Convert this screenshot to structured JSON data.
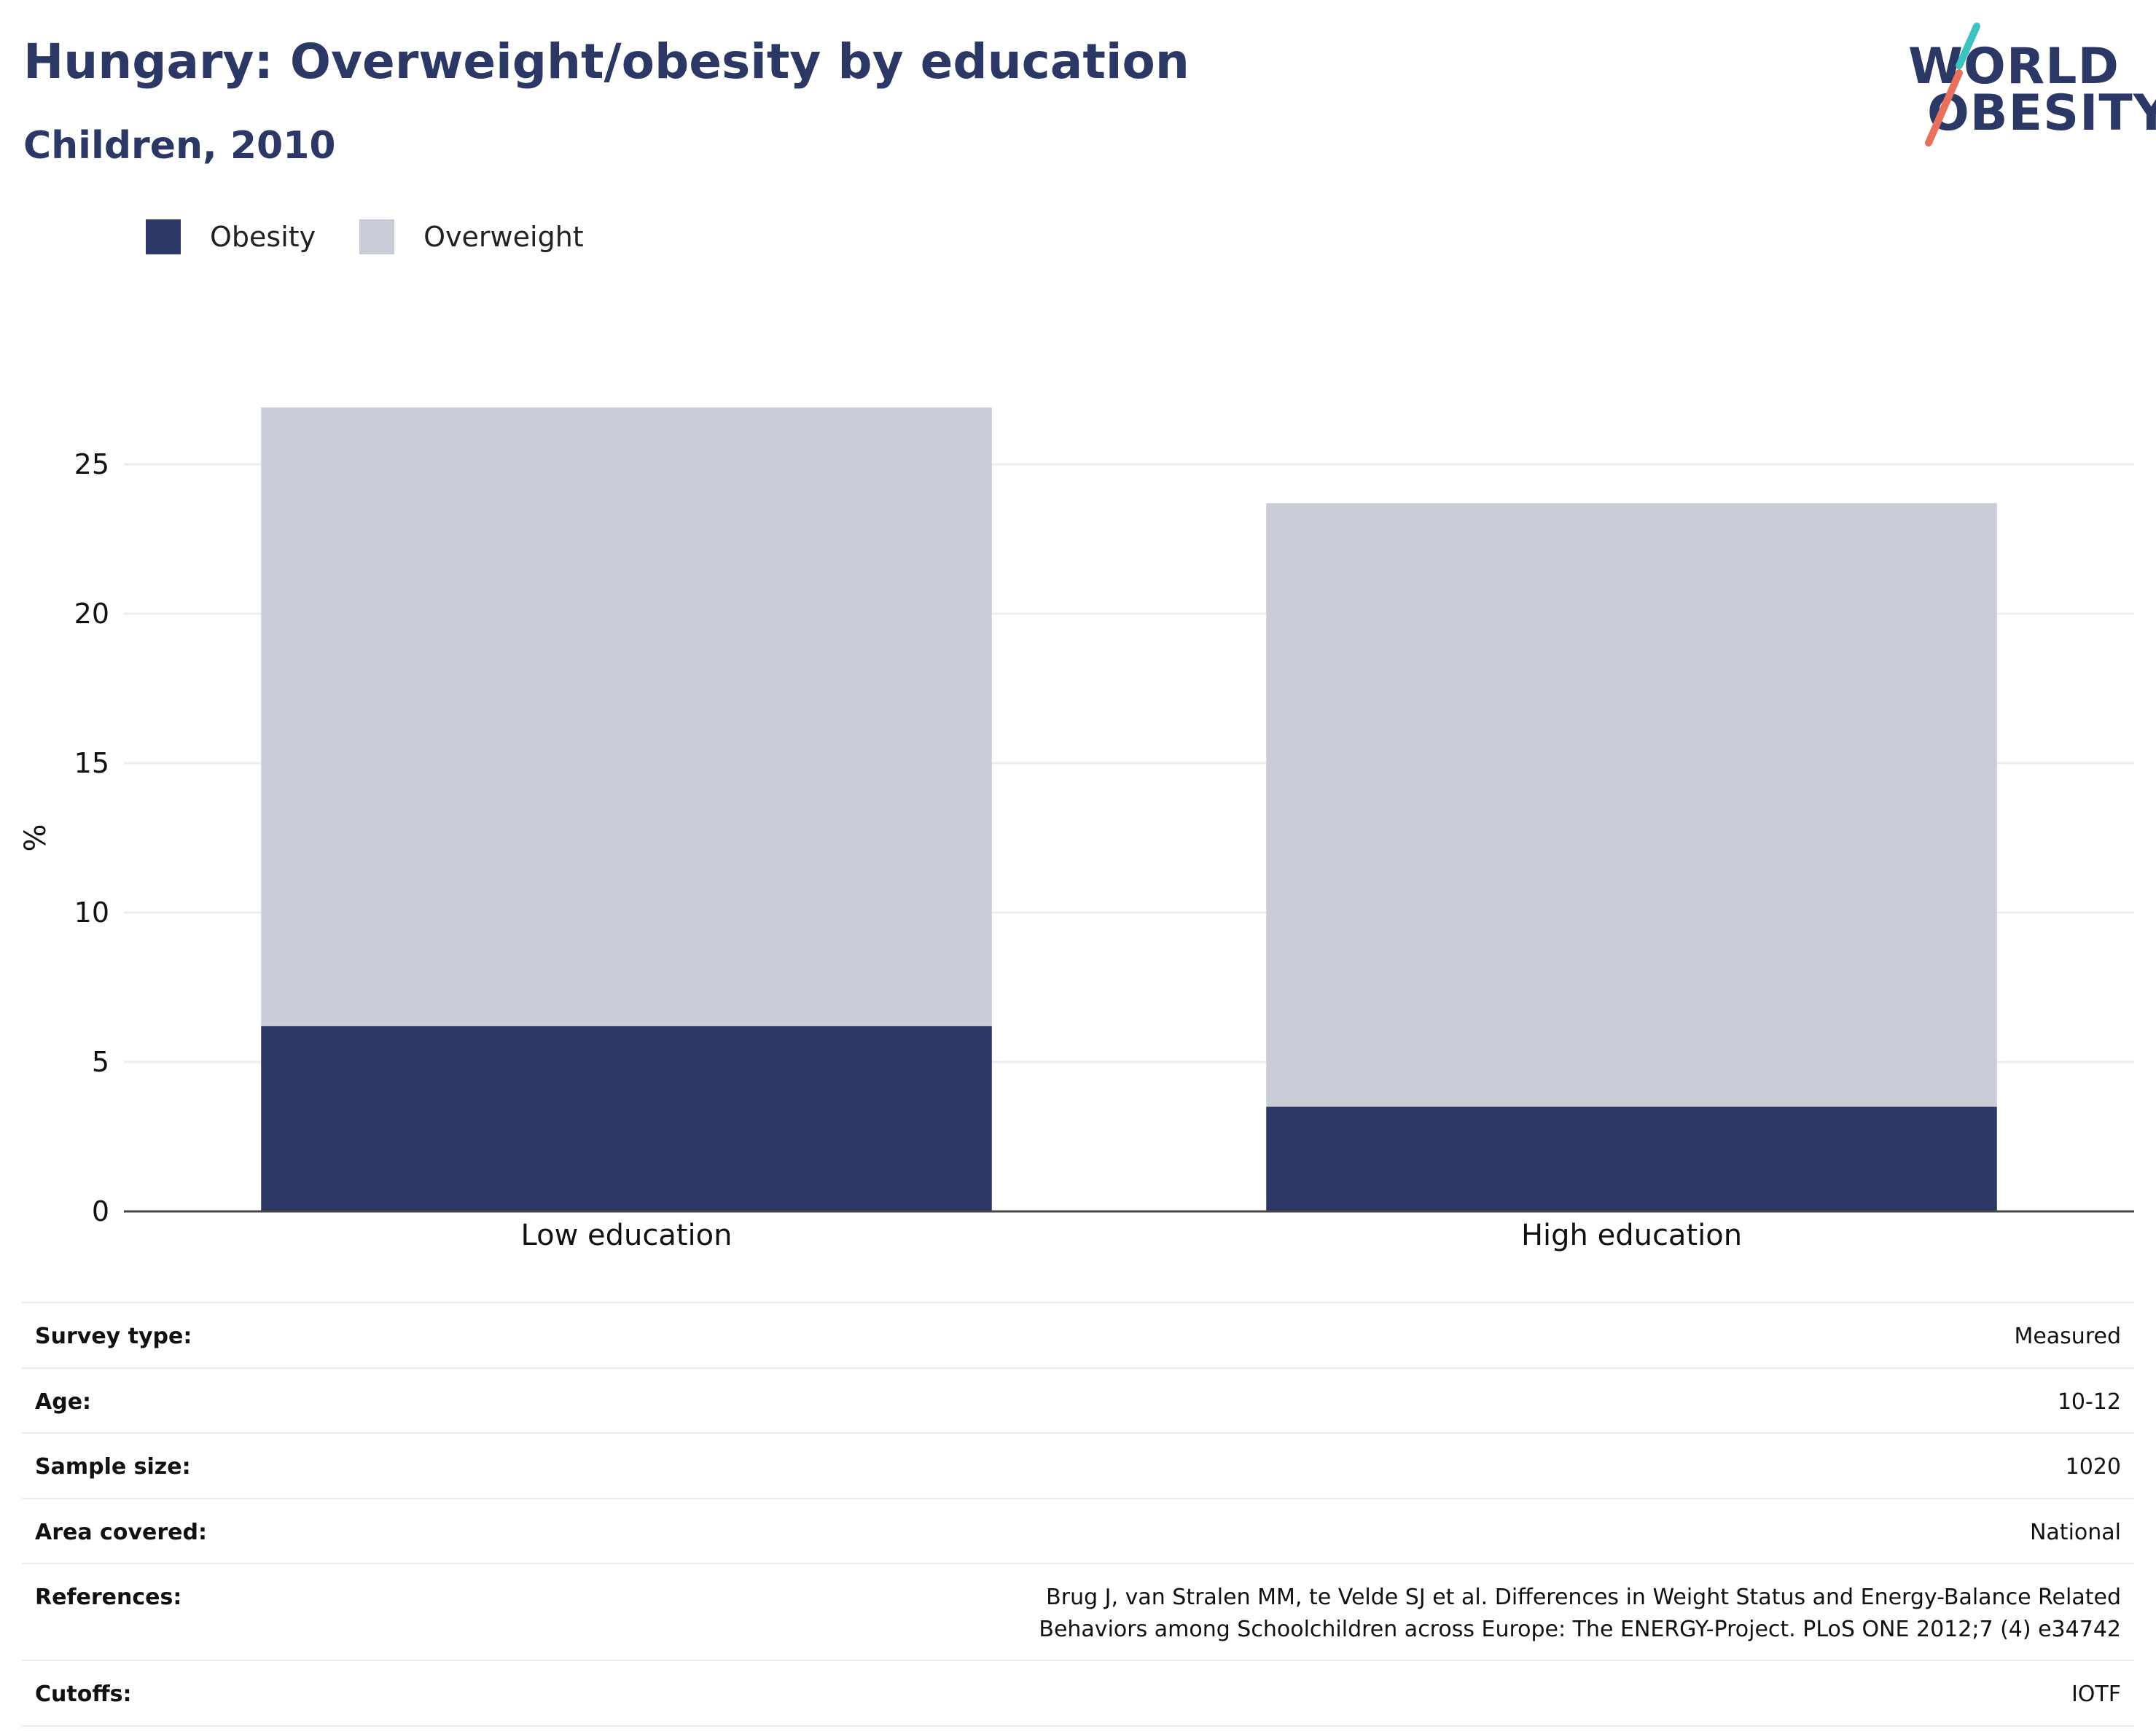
{
  "header": {
    "title": "Hungary: Overweight/obesity by education",
    "subtitle": "Children, 2010"
  },
  "logo": {
    "line1": "WORLD",
    "line2": "OBESITY",
    "text_color": "#2b3765",
    "slash_colors": [
      "#3ec1c1",
      "#e8705f"
    ]
  },
  "chart_data": {
    "type": "bar",
    "stacked": true,
    "categories": [
      "Low education",
      "High education"
    ],
    "series": [
      {
        "name": "Obesity",
        "values": [
          6.2,
          3.5
        ],
        "color": "#2b3765"
      },
      {
        "name": "Overweight",
        "values": [
          20.7,
          20.2
        ],
        "color": "#cacdd8"
      }
    ],
    "ylabel": "%",
    "xlabel": "",
    "ylim": [
      0,
      27
    ],
    "yticks": [
      0,
      5,
      10,
      15,
      20,
      25
    ],
    "grid": true,
    "legend_position": "top-left"
  },
  "info": {
    "rows": [
      {
        "label": "Survey type:",
        "value": "Measured"
      },
      {
        "label": "Age:",
        "value": "10-12"
      },
      {
        "label": "Sample size:",
        "value": "1020"
      },
      {
        "label": "Area covered:",
        "value": "National"
      },
      {
        "label": "References:",
        "value": "Brug J, van Stralen MM, te Velde SJ et al. Differences in Weight Status and Energy-Balance Related Behaviors among Schoolchildren across Europe: The ENERGY-Project. PLoS ONE 2012;7 (4) e34742"
      },
      {
        "label": "Cutoffs:",
        "value": "IOTF"
      }
    ]
  }
}
